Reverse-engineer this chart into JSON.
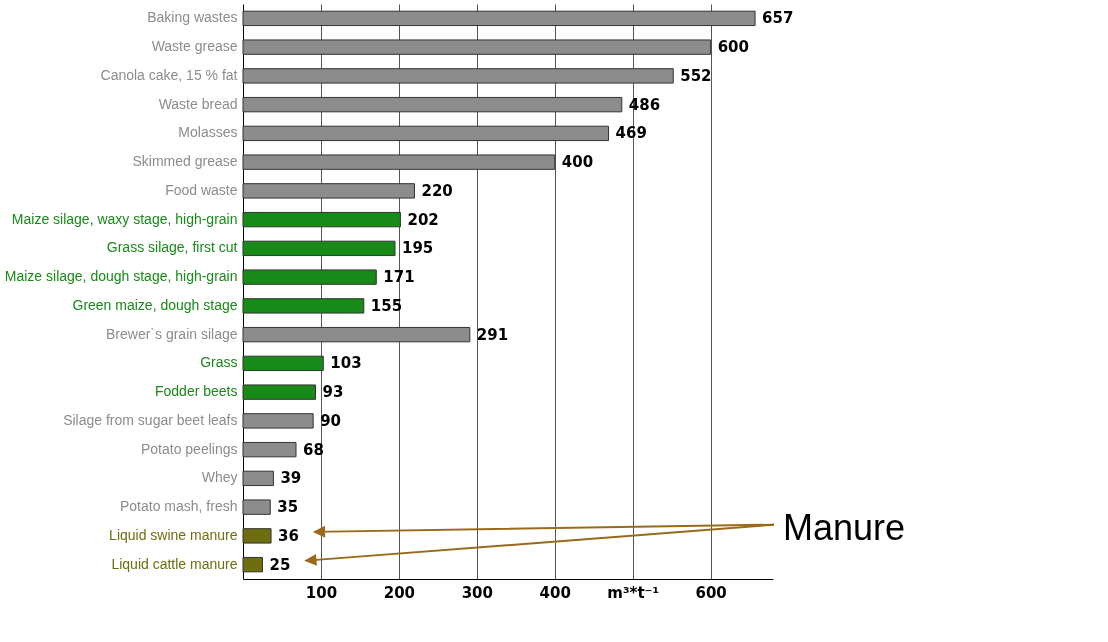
{
  "chart_data": {
    "type": "bar",
    "orientation": "horizontal",
    "categories": [
      "Baking wastes",
      "Waste grease",
      "Canola cake, 15 % fat",
      "Waste bread",
      "Molasses",
      "Skimmed grease",
      "Food waste",
      "Maize silage, waxy stage, high-grain",
      "Grass silage, first cut",
      "Maize silage, dough stage, high-grain",
      "Green maize, dough stage",
      "Brewer`s grain silage",
      "Grass",
      "Fodder beets",
      "Silage from sugar beet leafs",
      "Potato peelings",
      "Whey",
      "Potato mash, fresh",
      "Liquid swine manure",
      "Liquid cattle manure"
    ],
    "values": [
      657,
      600,
      552,
      486,
      469,
      400,
      220,
      202,
      195,
      171,
      155,
      291,
      103,
      93,
      90,
      68,
      39,
      35,
      36,
      25
    ],
    "colors": [
      "#8c8c8c",
      "#8c8c8c",
      "#8c8c8c",
      "#8c8c8c",
      "#8c8c8c",
      "#8c8c8c",
      "#8c8c8c",
      "#178a17",
      "#178a17",
      "#178a17",
      "#178a17",
      "#8c8c8c",
      "#178a17",
      "#178a17",
      "#8c8c8c",
      "#8c8c8c",
      "#8c8c8c",
      "#8c8c8c",
      "#6e6e10",
      "#6e6e10"
    ],
    "xlim": [
      0,
      680
    ],
    "xticks": [
      100,
      200,
      300,
      400,
      {
        "value": 500,
        "label": "m³*t⁻¹"
      },
      600
    ],
    "grid": "x",
    "data_labels": true,
    "annotations": [
      "Manure"
    ]
  }
}
